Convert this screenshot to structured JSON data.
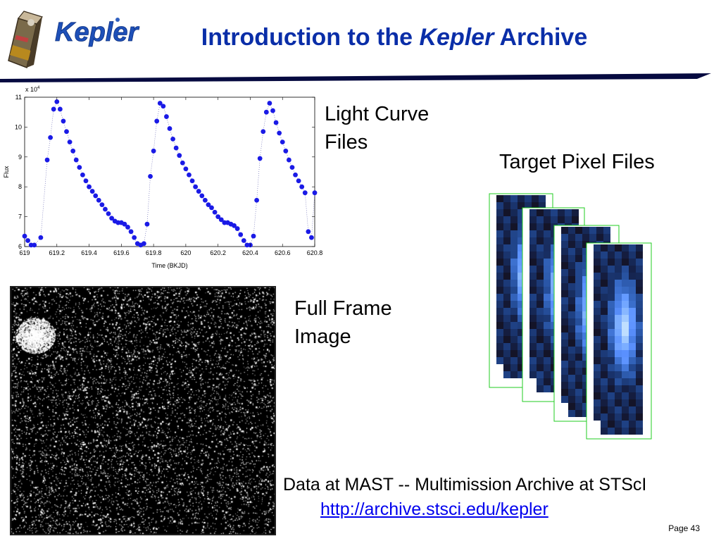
{
  "slide": {
    "logo_text": "Kepler",
    "title_prefix": "Introduction to the ",
    "title_italic": "Kepler",
    "title_suffix": " Archive",
    "page_label": "Page 43"
  },
  "labels": {
    "light_curve": [
      "Light Curve",
      "Files"
    ],
    "full_frame": [
      "Full Frame",
      "Image"
    ],
    "target_pixel": "Target Pixel Files"
  },
  "footer": {
    "mast_text": "Data at MAST -- Multimission Archive at STScI",
    "link_text": "http://archive.stsci.edu/kepler"
  },
  "colors": {
    "title": "#0a2ea8",
    "points": "#1a1ae6",
    "tpf_border": "#22cc22"
  },
  "chart_data": {
    "type": "scatter",
    "xlabel": "Time (BKJD)",
    "ylabel": "Flux",
    "y_multiplier_label": "x 10",
    "y_multiplier_exp": "4",
    "xlim": [
      619,
      620.8
    ],
    "ylim": [
      6,
      11
    ],
    "x_ticks": [
      "619",
      "619.2",
      "619.4",
      "619.6",
      "619.8",
      "620",
      "620.2",
      "620.4",
      "620.6",
      "620.8"
    ],
    "y_ticks": [
      "6",
      "7",
      "8",
      "9",
      "10",
      "11"
    ],
    "x": [
      619.0,
      619.02,
      619.04,
      619.06,
      619.1,
      619.14,
      619.16,
      619.18,
      619.2,
      619.22,
      619.24,
      619.26,
      619.28,
      619.3,
      619.32,
      619.34,
      619.36,
      619.38,
      619.4,
      619.42,
      619.44,
      619.46,
      619.48,
      619.5,
      619.52,
      619.54,
      619.56,
      619.58,
      619.6,
      619.62,
      619.64,
      619.66,
      619.68,
      619.7,
      619.72,
      619.74,
      619.76,
      619.78,
      619.8,
      619.82,
      619.84,
      619.86,
      619.88,
      619.9,
      619.92,
      619.94,
      619.96,
      619.98,
      620.0,
      620.02,
      620.04,
      620.06,
      620.08,
      620.1,
      620.12,
      620.14,
      620.16,
      620.18,
      620.2,
      620.22,
      620.24,
      620.26,
      620.28,
      620.3,
      620.32,
      620.34,
      620.36,
      620.38,
      620.4,
      620.42,
      620.44,
      620.46,
      620.48,
      620.5,
      620.52,
      620.54,
      620.56,
      620.58,
      620.6,
      620.62,
      620.64,
      620.66,
      620.68,
      620.7,
      620.72,
      620.74,
      620.76,
      620.78,
      620.8
    ],
    "y": [
      6.35,
      6.2,
      6.05,
      6.05,
      6.3,
      8.9,
      9.65,
      10.6,
      10.85,
      10.6,
      10.2,
      9.85,
      9.5,
      9.2,
      8.9,
      8.65,
      8.4,
      8.2,
      8.0,
      7.85,
      7.7,
      7.55,
      7.4,
      7.25,
      7.1,
      6.95,
      6.85,
      6.8,
      6.8,
      6.75,
      6.65,
      6.5,
      6.3,
      6.1,
      6.05,
      6.1,
      6.75,
      8.35,
      9.2,
      10.2,
      10.8,
      10.7,
      10.35,
      9.95,
      9.6,
      9.3,
      9.05,
      8.8,
      8.6,
      8.4,
      8.2,
      8.0,
      7.85,
      7.7,
      7.55,
      7.4,
      7.3,
      7.15,
      7.0,
      6.9,
      6.8,
      6.8,
      6.75,
      6.7,
      6.6,
      6.4,
      6.2,
      6.05,
      6.05,
      6.35,
      7.55,
      8.95,
      9.85,
      10.5,
      10.8,
      10.55,
      10.15,
      9.8,
      9.5,
      9.2,
      8.9,
      8.65,
      8.4,
      8.2,
      8.0,
      7.8,
      6.5,
      6.3,
      7.8
    ]
  }
}
